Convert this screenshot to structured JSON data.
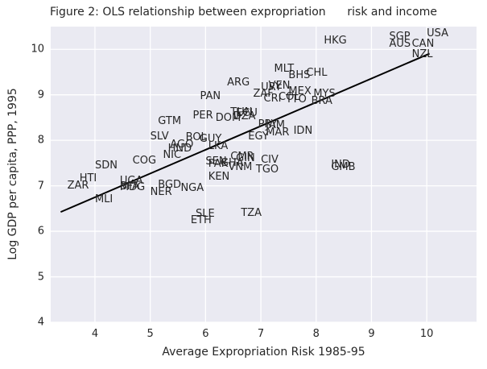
{
  "chart_data": {
    "type": "scatter",
    "title": "Figure 2: OLS relationship between expropriation      risk and income",
    "xlabel": "Average Expropriation Risk 1985-95",
    "ylabel": "Log GDP per capita, PPP, 1995",
    "xlim": [
      3.2,
      10.9
    ],
    "ylim": [
      4,
      10.5
    ],
    "xticks": [
      4,
      5,
      6,
      7,
      8,
      9,
      10
    ],
    "yticks": [
      4,
      5,
      6,
      7,
      8,
      9,
      10
    ],
    "grid": true,
    "legend": "none",
    "marker_style": "country-code-text",
    "colors": {
      "plot_background": "#eaeaf2",
      "gridline": "#ffffff",
      "text": "#262626",
      "regression_line": "#000000"
    },
    "regression_line": {
      "slope": 0.522,
      "intercept": 4.66,
      "x_start": 3.38,
      "x_end": 10.05
    },
    "points": [
      {
        "label": "USA",
        "x": 10.0,
        "y": 10.22
      },
      {
        "label": "SGP",
        "x": 9.32,
        "y": 10.15
      },
      {
        "label": "CAN",
        "x": 9.73,
        "y": 9.99
      },
      {
        "label": "AUS",
        "x": 9.32,
        "y": 9.98
      },
      {
        "label": "NZL",
        "x": 9.73,
        "y": 9.76
      },
      {
        "label": "HKG",
        "x": 8.14,
        "y": 10.05
      },
      {
        "label": "MLT",
        "x": 7.24,
        "y": 9.43
      },
      {
        "label": "BHS",
        "x": 7.5,
        "y": 9.29
      },
      {
        "label": "CHL",
        "x": 7.82,
        "y": 9.34
      },
      {
        "label": "ARG",
        "x": 6.39,
        "y": 9.13
      },
      {
        "label": "VEN",
        "x": 7.14,
        "y": 9.07
      },
      {
        "label": "URY",
        "x": 7.0,
        "y": 9.03
      },
      {
        "label": "MEX",
        "x": 7.5,
        "y": 8.94
      },
      {
        "label": "ZAF",
        "x": 6.86,
        "y": 8.89
      },
      {
        "label": "MYS",
        "x": 7.95,
        "y": 8.89
      },
      {
        "label": "CRI",
        "x": 7.05,
        "y": 8.79
      },
      {
        "label": "COL",
        "x": 7.32,
        "y": 8.81
      },
      {
        "label": "TTO",
        "x": 7.45,
        "y": 8.77
      },
      {
        "label": "BRA",
        "x": 7.91,
        "y": 8.73
      },
      {
        "label": "PAN",
        "x": 5.9,
        "y": 8.84
      },
      {
        "label": "PER",
        "x": 5.77,
        "y": 8.41
      },
      {
        "label": "DOM",
        "x": 6.18,
        "y": 8.36
      },
      {
        "label": "TUN",
        "x": 6.45,
        "y": 8.48
      },
      {
        "label": "ECU",
        "x": 6.55,
        "y": 8.47
      },
      {
        "label": "DZA",
        "x": 6.5,
        "y": 8.39
      },
      {
        "label": "GTM",
        "x": 5.14,
        "y": 8.29
      },
      {
        "label": "PRY",
        "x": 6.95,
        "y": 8.21
      },
      {
        "label": "JAM",
        "x": 7.09,
        "y": 8.19
      },
      {
        "label": "MAR",
        "x": 7.09,
        "y": 8.04
      },
      {
        "label": "IDN",
        "x": 7.59,
        "y": 8.07
      },
      {
        "label": "EGY",
        "x": 6.77,
        "y": 7.95
      },
      {
        "label": "SLV",
        "x": 5.0,
        "y": 7.95
      },
      {
        "label": "BOL",
        "x": 5.64,
        "y": 7.93
      },
      {
        "label": "GUY",
        "x": 5.89,
        "y": 7.9
      },
      {
        "label": "AGO",
        "x": 5.36,
        "y": 7.77
      },
      {
        "label": "HND",
        "x": 5.32,
        "y": 7.69
      },
      {
        "label": "LKA",
        "x": 6.05,
        "y": 7.73
      },
      {
        "label": "NIC",
        "x": 5.23,
        "y": 7.54
      },
      {
        "label": "CMR",
        "x": 6.45,
        "y": 7.5
      },
      {
        "label": "GIN",
        "x": 6.55,
        "y": 7.48
      },
      {
        "label": "COG",
        "x": 4.68,
        "y": 7.42
      },
      {
        "label": "CIV",
        "x": 7.0,
        "y": 7.44
      },
      {
        "label": "SEN",
        "x": 6.0,
        "y": 7.4
      },
      {
        "label": "GHA",
        "x": 6.27,
        "y": 7.37
      },
      {
        "label": "PAK",
        "x": 6.05,
        "y": 7.35
      },
      {
        "label": "VNM",
        "x": 6.41,
        "y": 7.28
      },
      {
        "label": "IND",
        "x": 8.27,
        "y": 7.33
      },
      {
        "label": "GMB",
        "x": 8.27,
        "y": 7.27
      },
      {
        "label": "SDN",
        "x": 4.0,
        "y": 7.31
      },
      {
        "label": "TGO",
        "x": 6.91,
        "y": 7.22
      },
      {
        "label": "KEN",
        "x": 6.05,
        "y": 7.06
      },
      {
        "label": "HTI",
        "x": 3.72,
        "y": 7.03
      },
      {
        "label": "UGA",
        "x": 4.45,
        "y": 6.97
      },
      {
        "label": "BGD",
        "x": 5.14,
        "y": 6.88
      },
      {
        "label": "ZAR",
        "x": 3.5,
        "y": 6.87
      },
      {
        "label": "BFA",
        "x": 4.45,
        "y": 6.85
      },
      {
        "label": "MDG",
        "x": 4.45,
        "y": 6.84
      },
      {
        "label": "NGA",
        "x": 5.55,
        "y": 6.81
      },
      {
        "label": "NER",
        "x": 5.0,
        "y": 6.73
      },
      {
        "label": "MLI",
        "x": 4.0,
        "y": 6.57
      },
      {
        "label": "TZA",
        "x": 6.64,
        "y": 6.26
      },
      {
        "label": "SLE",
        "x": 5.82,
        "y": 6.25
      },
      {
        "label": "ETH",
        "x": 5.73,
        "y": 6.11
      }
    ]
  }
}
